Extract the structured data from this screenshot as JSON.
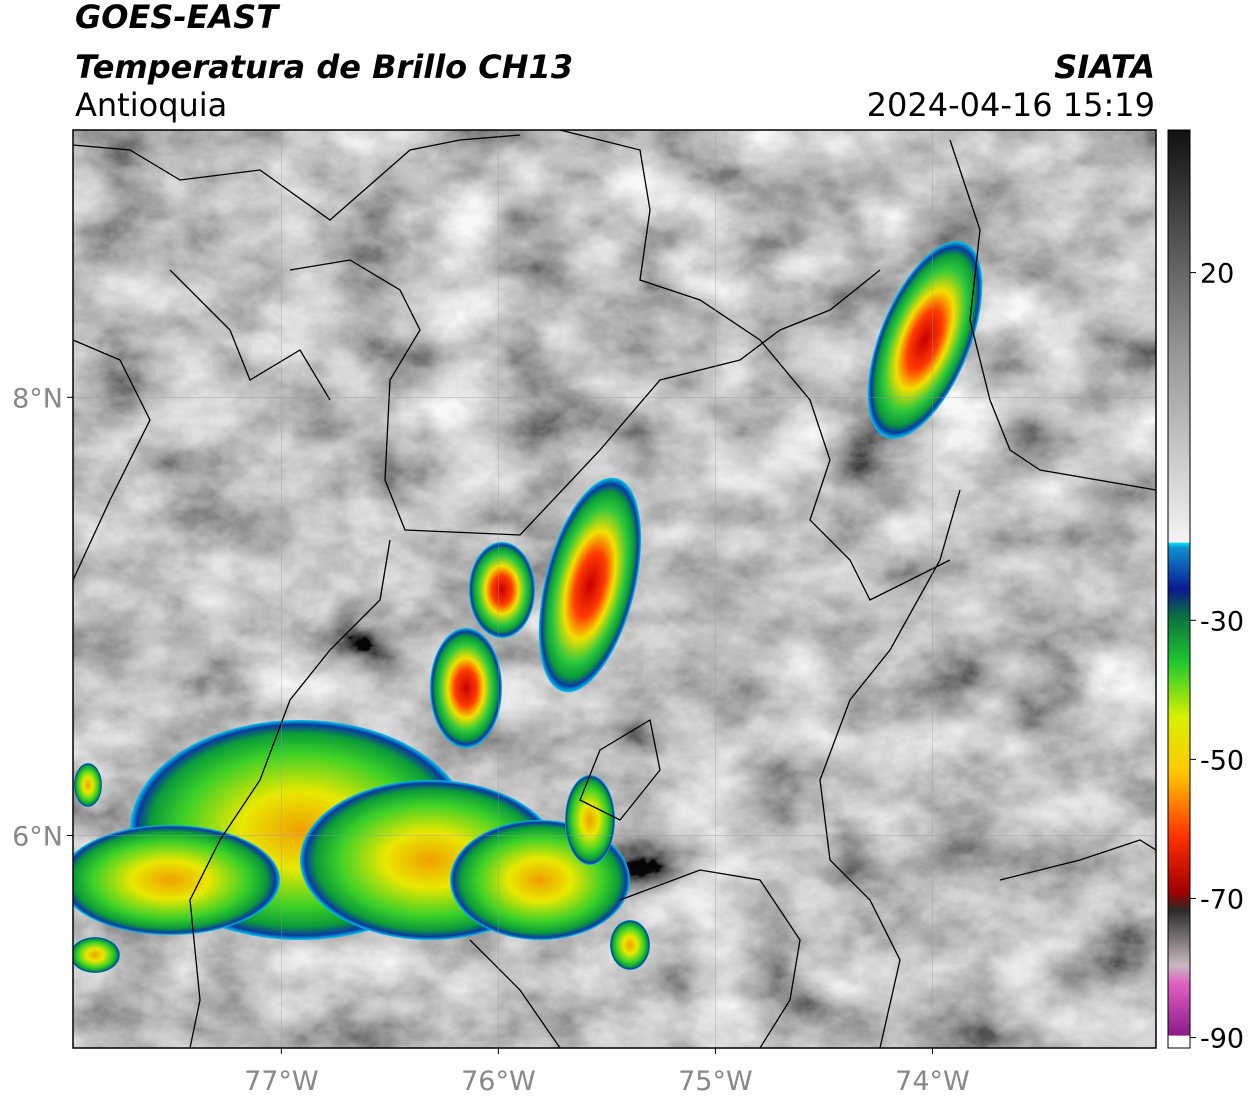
{
  "header": {
    "satellite": "GOES-EAST",
    "product": "Temperatura de Brillo CH13",
    "region": "Antioquia",
    "source": "SIATA",
    "datetime": "2024-04-16 15:19"
  },
  "map": {
    "xlim": [
      -77.96,
      -72.97
    ],
    "ylim": [
      5.03,
      9.22
    ],
    "lon_ticks": [
      {
        "value": -77,
        "label": "77°W"
      },
      {
        "value": -76,
        "label": "76°W"
      },
      {
        "value": -75,
        "label": "75°W"
      },
      {
        "value": -74,
        "label": "74°W"
      }
    ],
    "lat_ticks": [
      {
        "value": 8,
        "label": "8°N"
      },
      {
        "value": 6,
        "label": "6°N"
      }
    ]
  },
  "colorbar": {
    "lim": [
      -91.5,
      40.5
    ],
    "ticks": [
      20,
      -30,
      -50,
      -70,
      -90
    ]
  }
}
